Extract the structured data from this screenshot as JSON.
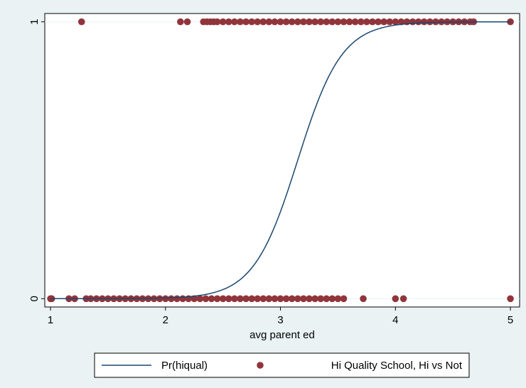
{
  "chart_data": {
    "type": "scatter",
    "title": "",
    "xlabel": "avg parent ed",
    "ylabel": "",
    "xlim": [
      0.95,
      5.08
    ],
    "ylim": [
      -0.03,
      1.03
    ],
    "x_ticks": [
      1,
      2,
      3,
      4,
      5
    ],
    "x_tick_labels": [
      "1",
      "2",
      "3",
      "4",
      "5"
    ],
    "y_ticks": [
      0,
      1
    ],
    "y_tick_labels": [
      "0",
      "1"
    ],
    "grid": "horizontal at y ticks",
    "legend_position": "bottom-center",
    "colors": {
      "background": "#eaf2f3",
      "plot_area": "#ffffff",
      "curve": "#1a476f",
      "points": "#90353b"
    },
    "series": [
      {
        "name": "Pr(hiqual)",
        "kind": "line",
        "logistic": {
          "midpoint": 3.15,
          "slope": 5.2
        }
      },
      {
        "name": "Hi Quality School, Hi vs Not",
        "kind": "scatter",
        "points_y1_x": [
          1.27,
          2.13,
          2.19,
          2.33,
          2.36,
          2.39,
          2.42,
          2.45,
          2.5,
          2.55,
          2.6,
          2.65,
          2.7,
          2.75,
          2.8,
          2.85,
          2.9,
          2.95,
          3.0,
          3.05,
          3.1,
          3.15,
          3.2,
          3.25,
          3.3,
          3.35,
          3.4,
          3.45,
          3.5,
          3.55,
          3.6,
          3.65,
          3.7,
          3.75,
          3.8,
          3.85,
          3.9,
          3.95,
          4.0,
          4.05,
          4.1,
          4.15,
          4.2,
          4.25,
          4.3,
          4.35,
          4.4,
          4.45,
          4.5,
          4.55,
          4.6,
          4.65,
          4.68,
          5.0
        ],
        "points_y0_x": [
          1.0,
          1.01,
          1.16,
          1.21,
          1.31,
          1.35,
          1.4,
          1.45,
          1.5,
          1.55,
          1.6,
          1.65,
          1.7,
          1.75,
          1.8,
          1.85,
          1.9,
          1.95,
          2.0,
          2.05,
          2.1,
          2.15,
          2.2,
          2.25,
          2.3,
          2.35,
          2.4,
          2.45,
          2.5,
          2.55,
          2.6,
          2.65,
          2.7,
          2.75,
          2.8,
          2.85,
          2.9,
          2.95,
          3.0,
          3.05,
          3.1,
          3.15,
          3.2,
          3.25,
          3.3,
          3.35,
          3.4,
          3.45,
          3.5,
          3.55,
          3.72,
          4.0,
          4.07,
          5.0
        ]
      }
    ]
  }
}
